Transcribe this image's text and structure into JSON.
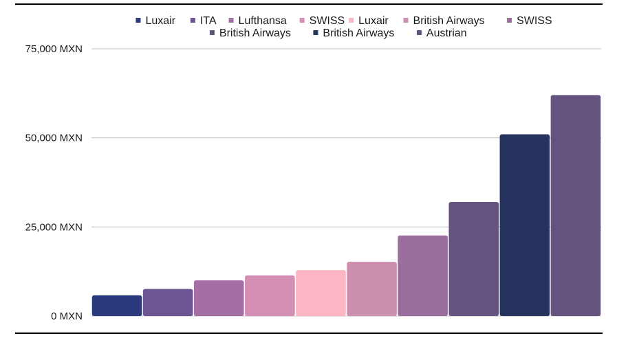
{
  "chart_data": {
    "type": "bar",
    "categories": [
      "Luxair",
      "ITA",
      "Lufthansa",
      "SWISS",
      "Luxair",
      "British Airways",
      "SWISS",
      "British Airways",
      "British Airways",
      "Austrian"
    ],
    "values": [
      5800,
      7600,
      10000,
      11400,
      12900,
      15200,
      22600,
      32000,
      51000,
      62000
    ],
    "colors": [
      "#2b3a7c",
      "#6e5594",
      "#a56ea4",
      "#d68fb4",
      "#fbb5c3",
      "#cc8fad",
      "#9a6f9d",
      "#645380",
      "#25335e",
      "#64537f"
    ],
    "y_ticks": [
      "0 MXN",
      "25,000 MXN",
      "50,000 MXN",
      "75,000 MXN"
    ],
    "ylim": [
      0,
      75000
    ],
    "grid": true,
    "legend_position": "top",
    "title": "",
    "xlabel": "",
    "ylabel": ""
  }
}
